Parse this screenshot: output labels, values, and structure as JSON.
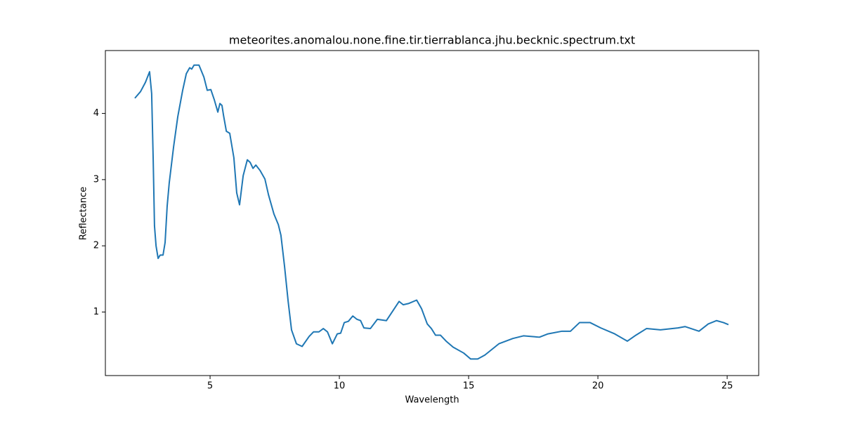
{
  "chart_data": {
    "type": "line",
    "title": "meteorites.anomalou.none.fine.tir.tierrablanca.jhu.becknic.spectrum.txt",
    "x_label": "Wavelength",
    "y_label": "Reflectance",
    "color": "#1f77b4",
    "x": [
      2.09,
      2.31,
      2.5,
      2.66,
      2.74,
      2.8,
      2.85,
      2.91,
      2.99,
      3.07,
      3.18,
      3.26,
      3.34,
      3.42,
      3.59,
      3.75,
      3.94,
      4.08,
      4.21,
      4.29,
      4.38,
      4.57,
      4.76,
      4.89,
      5.03,
      5.16,
      5.3,
      5.38,
      5.46,
      5.52,
      5.63,
      5.76,
      5.92,
      6.03,
      6.14,
      6.28,
      6.44,
      6.55,
      6.66,
      6.77,
      6.93,
      7.12,
      7.26,
      7.47,
      7.64,
      7.74,
      7.88,
      8.02,
      8.15,
      8.34,
      8.56,
      8.83,
      9.0,
      9.21,
      9.38,
      9.54,
      9.73,
      9.92,
      10.05,
      10.19,
      10.35,
      10.52,
      10.68,
      10.82,
      10.95,
      11.2,
      11.47,
      11.82,
      12.09,
      12.31,
      12.47,
      12.69,
      12.99,
      13.18,
      13.4,
      13.56,
      13.72,
      13.91,
      14.13,
      14.4,
      14.81,
      15.08,
      15.35,
      15.63,
      16.17,
      16.71,
      17.12,
      17.74,
      18.07,
      18.61,
      18.94,
      19.29,
      19.7,
      20.11,
      20.65,
      21.14,
      21.47,
      21.88,
      22.42,
      23.1,
      23.37,
      23.91,
      24.27,
      24.59,
      24.86,
      25.05
    ],
    "values": [
      4.23,
      4.33,
      4.47,
      4.63,
      4.3,
      3.3,
      2.3,
      2.0,
      1.81,
      1.86,
      1.86,
      2.05,
      2.6,
      2.95,
      3.5,
      3.95,
      4.35,
      4.6,
      4.69,
      4.67,
      4.73,
      4.73,
      4.55,
      4.35,
      4.36,
      4.21,
      4.02,
      4.15,
      4.12,
      3.97,
      3.73,
      3.7,
      3.33,
      2.8,
      2.62,
      3.06,
      3.3,
      3.26,
      3.17,
      3.22,
      3.14,
      3.01,
      2.77,
      2.48,
      2.32,
      2.16,
      1.69,
      1.16,
      0.73,
      0.52,
      0.48,
      0.63,
      0.7,
      0.7,
      0.75,
      0.7,
      0.52,
      0.67,
      0.68,
      0.84,
      0.86,
      0.94,
      0.89,
      0.87,
      0.76,
      0.75,
      0.89,
      0.87,
      1.03,
      1.16,
      1.11,
      1.13,
      1.18,
      1.05,
      0.82,
      0.75,
      0.65,
      0.65,
      0.56,
      0.47,
      0.38,
      0.29,
      0.29,
      0.35,
      0.52,
      0.6,
      0.64,
      0.62,
      0.67,
      0.71,
      0.71,
      0.84,
      0.84,
      0.76,
      0.67,
      0.56,
      0.65,
      0.75,
      0.73,
      0.76,
      0.78,
      0.71,
      0.82,
      0.87,
      0.84,
      0.81
    ],
    "xlim": [
      0.95,
      26.22
    ],
    "ylim": [
      0.04,
      4.95
    ],
    "xticks": [
      5,
      10,
      15,
      20,
      25
    ],
    "yticks": [
      1,
      2,
      3,
      4
    ]
  }
}
